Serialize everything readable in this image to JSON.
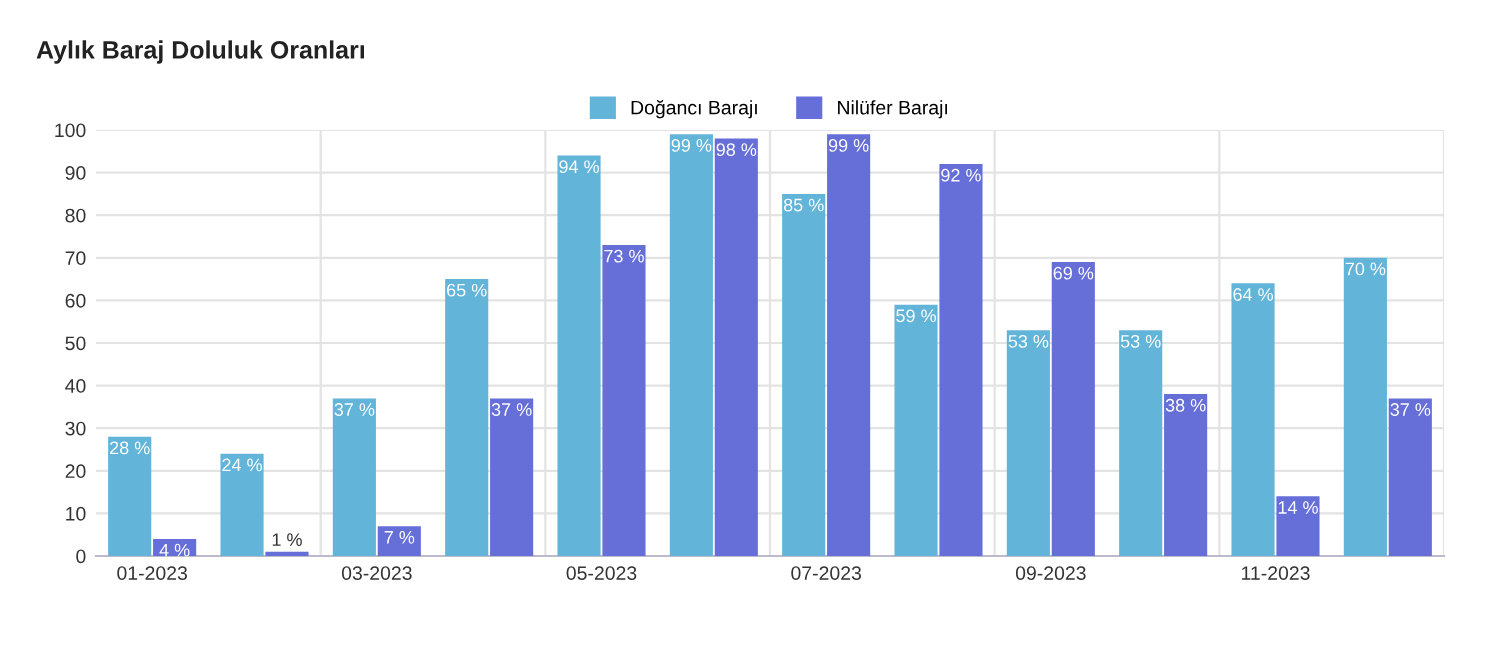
{
  "chart_data": {
    "type": "bar",
    "title": "Aylık Baraj Doluluk Oranları",
    "categories": [
      "01-2023",
      null,
      "03-2023",
      null,
      "05-2023",
      null,
      "07-2023",
      null,
      "09-2023",
      null,
      "11-2023",
      null
    ],
    "series": [
      {
        "name": "Doğancı Barajı",
        "color": "#62b4d9",
        "values": [
          28,
          24,
          37,
          65,
          94,
          99,
          85,
          59,
          53,
          53,
          64,
          70
        ],
        "value_labels": [
          "28 %",
          "24 %",
          "37 %",
          "65 %",
          "94 %",
          "99 %",
          "85 %",
          "59 %",
          "53 %",
          "53 %",
          "64 %",
          "70 %"
        ]
      },
      {
        "name": "Nilüfer Barajı",
        "color": "#666ed8",
        "values": [
          4,
          1,
          7,
          37,
          73,
          98,
          99,
          92,
          69,
          38,
          14,
          37
        ],
        "value_labels": [
          "4 %",
          "1 %",
          "7 %",
          "37 %",
          "73 %",
          "98 %",
          "99 %",
          "92 %",
          "69 %",
          "38 %",
          "14 %",
          "37 %"
        ]
      }
    ],
    "ylim": [
      0,
      100
    ],
    "yticks": [
      0,
      10,
      20,
      30,
      40,
      50,
      60,
      70,
      80,
      90,
      100
    ],
    "grid": true,
    "legend": "top"
  }
}
